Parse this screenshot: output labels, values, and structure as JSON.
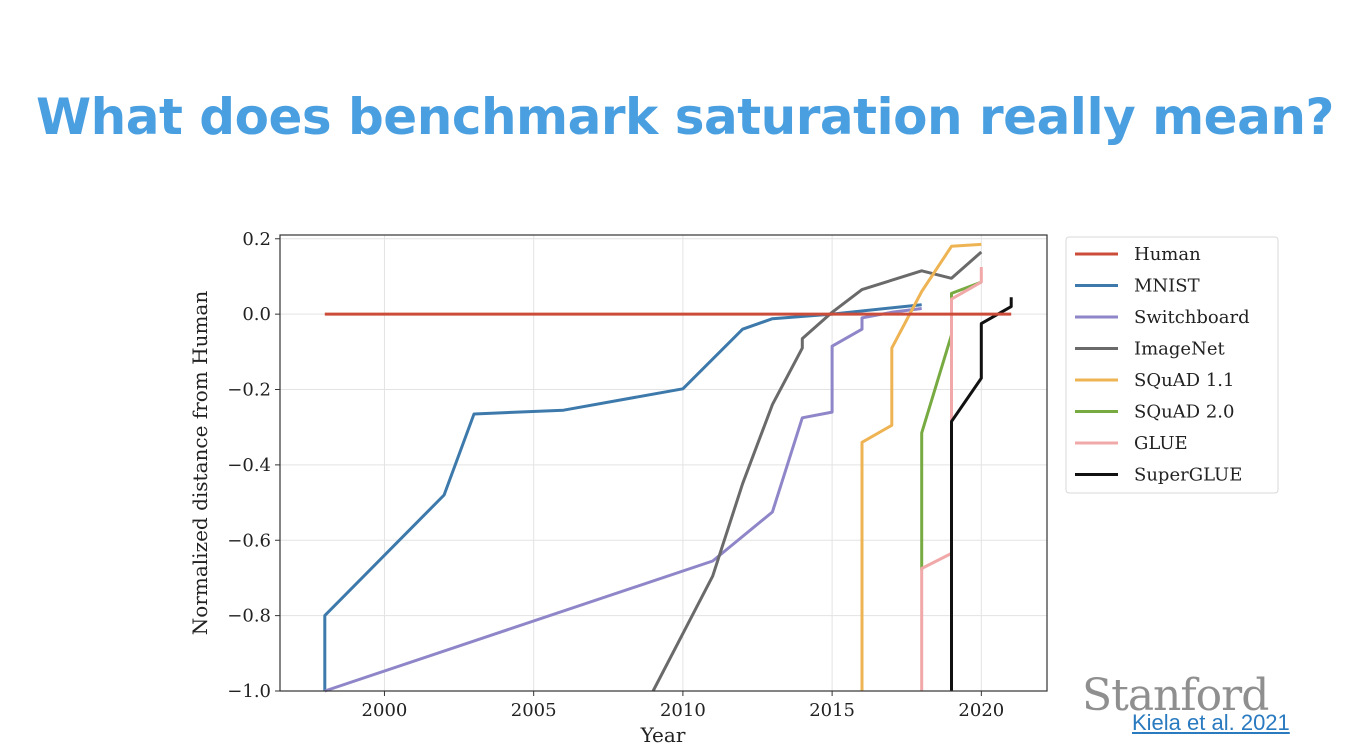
{
  "slide": {
    "title": "What does benchmark saturation really mean?",
    "logo_text": "Stanford",
    "citation": "Kiela et al. 2021"
  },
  "chart_data": {
    "type": "line",
    "title": "",
    "xlabel": "Year",
    "ylabel": "Normalized distance from Human",
    "xlim": [
      1996.5,
      2022.2
    ],
    "ylim": [
      -1.0,
      0.21
    ],
    "xticks": [
      2000,
      2005,
      2010,
      2015,
      2020
    ],
    "yticks": [
      0.2,
      0.0,
      -0.2,
      -0.4,
      -0.6,
      -0.8,
      -1.0
    ],
    "ytick_labels": [
      "0.2",
      "0.0",
      "−0.2",
      "−0.4",
      "−0.6",
      "−0.8",
      "−1.0"
    ],
    "grid": true,
    "legend": "outside-right",
    "series": [
      {
        "name": "Human",
        "color": "#cc4c3a",
        "x": [
          1998,
          2021
        ],
        "y": [
          0.0,
          0.0
        ]
      },
      {
        "name": "MNIST",
        "color": "#3d7aab",
        "x": [
          1998,
          1998,
          2002,
          2003,
          2006,
          2010,
          2012,
          2013,
          2015,
          2018
        ],
        "y": [
          -1.0,
          -0.8,
          -0.48,
          -0.265,
          -0.255,
          -0.198,
          -0.04,
          -0.012,
          0.0,
          0.025
        ]
      },
      {
        "name": "Switchboard",
        "color": "#8e86c8",
        "x": [
          1998,
          2011,
          2013,
          2014,
          2015,
          2015,
          2016,
          2016,
          2017,
          2018
        ],
        "y": [
          -1.0,
          -0.655,
          -0.525,
          -0.275,
          -0.26,
          -0.085,
          -0.04,
          -0.01,
          0.005,
          0.015
        ]
      },
      {
        "name": "ImageNet",
        "color": "#6a6a6a",
        "x": [
          2009,
          2011,
          2012,
          2013,
          2014,
          2014,
          2015,
          2016,
          2018,
          2019,
          2020
        ],
        "y": [
          -1.0,
          -0.695,
          -0.45,
          -0.24,
          -0.09,
          -0.065,
          0.005,
          0.065,
          0.115,
          0.095,
          0.165
        ]
      },
      {
        "name": "SQuAD 1.1",
        "color": "#eeb454",
        "x": [
          2016,
          2016,
          2017,
          2017,
          2018,
          2019,
          2020
        ],
        "y": [
          -1.0,
          -0.34,
          -0.295,
          -0.09,
          0.06,
          0.18,
          0.185
        ]
      },
      {
        "name": "SQuAD 2.0",
        "color": "#77ab42",
        "x": [
          2018,
          2018,
          2019,
          2019,
          2020
        ],
        "y": [
          -0.68,
          -0.315,
          -0.055,
          0.055,
          0.085
        ]
      },
      {
        "name": "GLUE",
        "color": "#f0a8a8",
        "x": [
          2018,
          2018,
          2019,
          2019,
          2020,
          2020
        ],
        "y": [
          -1.0,
          -0.675,
          -0.635,
          0.04,
          0.085,
          0.125
        ]
      },
      {
        "name": "SuperGLUE",
        "color": "#111111",
        "x": [
          2019,
          2019,
          2020,
          2020,
          2021,
          2021
        ],
        "y": [
          -1.0,
          -0.285,
          -0.17,
          -0.025,
          0.02,
          0.045
        ]
      }
    ]
  }
}
